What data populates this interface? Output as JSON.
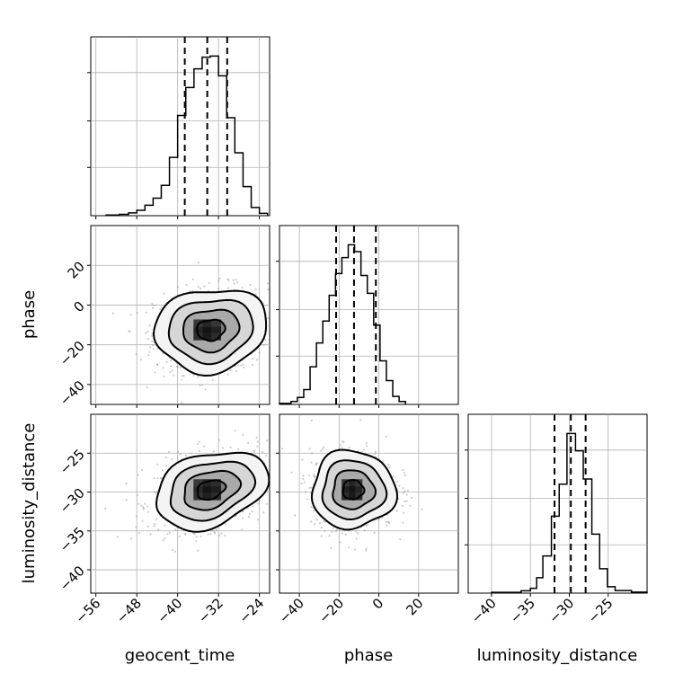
{
  "chart_data": {
    "type": "corner",
    "parameters": [
      {
        "name": "geocent_time",
        "label": "geocent_time",
        "range": [
          -57,
          -22
        ],
        "ticks": [
          -56,
          -48,
          -40,
          -32,
          -24
        ],
        "quantiles": [
          -38.6,
          -34.2,
          -30.3
        ],
        "hist": [
          {
            "x0": -54.0,
            "x1": -51.4,
            "count": 0.3
          },
          {
            "x0": -51.4,
            "x1": -49.6,
            "count": 0.6
          },
          {
            "x0": -49.6,
            "x1": -48.0,
            "count": 1.2
          },
          {
            "x0": -48.0,
            "x1": -46.4,
            "count": 2.3
          },
          {
            "x0": -46.4,
            "x1": -44.8,
            "count": 4.5
          },
          {
            "x0": -44.8,
            "x1": -43.2,
            "count": 7.5
          },
          {
            "x0": -43.2,
            "x1": -41.6,
            "count": 13.0
          },
          {
            "x0": -41.6,
            "x1": -40.0,
            "count": 25.0
          },
          {
            "x0": -40.0,
            "x1": -38.4,
            "count": 43.0
          },
          {
            "x0": -38.4,
            "x1": -36.8,
            "count": 55.0
          },
          {
            "x0": -36.8,
            "x1": -35.2,
            "count": 63.0
          },
          {
            "x0": -35.2,
            "x1": -33.6,
            "count": 68.0
          },
          {
            "x0": -33.6,
            "x1": -32.0,
            "count": 68.5
          },
          {
            "x0": -32.0,
            "x1": -30.4,
            "count": 60.0
          },
          {
            "x0": -30.4,
            "x1": -28.8,
            "count": 42.0
          },
          {
            "x0": -28.8,
            "x1": -27.2,
            "count": 27.0
          },
          {
            "x0": -27.2,
            "x1": -25.6,
            "count": 12.5
          },
          {
            "x0": -25.6,
            "x1": -24.0,
            "count": 3.5
          },
          {
            "x0": -24.0,
            "x1": -22.4,
            "count": 1.0
          }
        ]
      },
      {
        "name": "phase",
        "label": "phase",
        "range": [
          -50,
          40
        ],
        "ticks": [
          -40,
          -20,
          0,
          20
        ],
        "quantiles": [
          -21.5,
          -12.5,
          -1.5
        ],
        "hist": [
          {
            "x0": -50.0,
            "x1": -44.2,
            "count": 0.5
          },
          {
            "x0": -44.2,
            "x1": -41.0,
            "count": 1.5
          },
          {
            "x0": -41.0,
            "x1": -37.8,
            "count": 3.5
          },
          {
            "x0": -37.8,
            "x1": -34.6,
            "count": 7.5
          },
          {
            "x0": -34.6,
            "x1": -31.4,
            "count": 19.0
          },
          {
            "x0": -31.4,
            "x1": -28.2,
            "count": 31.0
          },
          {
            "x0": -28.2,
            "x1": -25.0,
            "count": 42.0
          },
          {
            "x0": -25.0,
            "x1": -21.8,
            "count": 55.0
          },
          {
            "x0": -21.8,
            "x1": -18.6,
            "count": 66.0
          },
          {
            "x0": -18.6,
            "x1": -15.4,
            "count": 74.0
          },
          {
            "x0": -15.4,
            "x1": -12.2,
            "count": 80.5
          },
          {
            "x0": -12.2,
            "x1": -9.0,
            "count": 77.0
          },
          {
            "x0": -9.0,
            "x1": -5.8,
            "count": 65.0
          },
          {
            "x0": -5.8,
            "x1": -2.6,
            "count": 56.0
          },
          {
            "x0": -2.6,
            "x1": 0.6,
            "count": 40.0
          },
          {
            "x0": 0.6,
            "x1": 3.8,
            "count": 22.0
          },
          {
            "x0": 3.8,
            "x1": 7.0,
            "count": 12.0
          },
          {
            "x0": 7.0,
            "x1": 10.2,
            "count": 4.0
          },
          {
            "x0": 10.2,
            "x1": 13.4,
            "count": 1.5
          }
        ]
      },
      {
        "name": "luminosity_distance",
        "label": "luminosity_distance",
        "range": [
          -43,
          -20
        ],
        "ticks": [
          -40,
          -35,
          -30,
          -25
        ],
        "quantiles": [
          -31.9,
          -29.8,
          -27.9
        ],
        "hist": [
          {
            "x0": -40.0,
            "x1": -36.2,
            "count": 0.6
          },
          {
            "x0": -36.2,
            "x1": -35.0,
            "count": 1.8
          },
          {
            "x0": -35.0,
            "x1": -34.2,
            "count": 3.8
          },
          {
            "x0": -34.2,
            "x1": -33.4,
            "count": 12.0
          },
          {
            "x0": -33.4,
            "x1": -32.3,
            "count": 29.0
          },
          {
            "x0": -32.3,
            "x1": -31.3,
            "count": 60.0
          },
          {
            "x0": -31.3,
            "x1": -30.3,
            "count": 85.0
          },
          {
            "x0": -30.3,
            "x1": -29.2,
            "count": 124.5
          },
          {
            "x0": -29.2,
            "x1": -28.2,
            "count": 111.0
          },
          {
            "x0": -28.2,
            "x1": -27.1,
            "count": 89.0
          },
          {
            "x0": -27.1,
            "x1": -26.1,
            "count": 46.0
          },
          {
            "x0": -26.1,
            "x1": -25.1,
            "count": 19.0
          },
          {
            "x0": -25.1,
            "x1": -24.1,
            "count": 5.0
          },
          {
            "x0": -24.1,
            "x1": -22.0,
            "count": 2.0
          },
          {
            "x0": -22.0,
            "x1": -20.0,
            "count": 0.8
          }
        ]
      }
    ],
    "hist_ylim": [
      0,
      75
    ],
    "hist_yticks": [
      0,
      20,
      40,
      60
    ],
    "grid": true,
    "panels_2d": [
      {
        "x_param": "geocent_time",
        "y_param": "phase",
        "center": [
          -33.5,
          -12.5
        ],
        "sigma": [
          5.5,
          10.5
        ],
        "rho": 0.1,
        "contours_sigma": [
          0.5,
          1.0,
          1.5,
          2.0
        ],
        "density_cells": [
          {
            "x": -36.0,
            "y": -16.0,
            "w": 1.8,
            "h": 3.5,
            "level": 0.78
          },
          {
            "x": -34.2,
            "y": -16.0,
            "w": 1.8,
            "h": 3.5,
            "level": 0.95
          },
          {
            "x": -32.4,
            "y": -16.0,
            "w": 1.8,
            "h": 3.5,
            "level": 0.8
          },
          {
            "x": -36.0,
            "y": -12.5,
            "w": 1.8,
            "h": 3.5,
            "level": 0.85
          },
          {
            "x": -34.2,
            "y": -12.5,
            "w": 1.8,
            "h": 3.5,
            "level": 1.0
          },
          {
            "x": -32.4,
            "y": -12.5,
            "w": 1.8,
            "h": 3.5,
            "level": 0.9
          },
          {
            "x": -36.0,
            "y": -9.0,
            "w": 1.8,
            "h": 3.5,
            "level": 0.7
          },
          {
            "x": -34.2,
            "y": -9.0,
            "w": 1.8,
            "h": 3.5,
            "level": 0.85
          },
          {
            "x": -32.4,
            "y": -9.0,
            "w": 1.8,
            "h": 3.5,
            "level": 0.72
          }
        ]
      },
      {
        "x_param": "geocent_time",
        "y_param": "luminosity_distance",
        "center": [
          -33.5,
          -29.7
        ],
        "sigma": [
          5.5,
          2.5
        ],
        "rho": 0.3,
        "contours_sigma": [
          0.5,
          1.0,
          1.5,
          2.0
        ],
        "density_cells": [
          {
            "x": -36.0,
            "y": -30.6,
            "w": 1.8,
            "h": 0.9,
            "level": 0.75
          },
          {
            "x": -34.2,
            "y": -30.6,
            "w": 1.8,
            "h": 0.9,
            "level": 0.9
          },
          {
            "x": -32.4,
            "y": -30.6,
            "w": 1.8,
            "h": 0.9,
            "level": 0.8
          },
          {
            "x": -36.0,
            "y": -29.7,
            "w": 1.8,
            "h": 0.9,
            "level": 0.82
          },
          {
            "x": -34.2,
            "y": -29.7,
            "w": 1.8,
            "h": 0.9,
            "level": 1.0
          },
          {
            "x": -32.4,
            "y": -29.7,
            "w": 1.8,
            "h": 0.9,
            "level": 0.92
          },
          {
            "x": -36.0,
            "y": -28.8,
            "w": 1.8,
            "h": 0.9,
            "level": 0.68
          },
          {
            "x": -34.2,
            "y": -28.8,
            "w": 1.8,
            "h": 0.9,
            "level": 0.86
          },
          {
            "x": -32.4,
            "y": -28.8,
            "w": 1.8,
            "h": 0.9,
            "level": 0.8
          }
        ]
      },
      {
        "x_param": "phase",
        "y_param": "luminosity_distance",
        "center": [
          -13.0,
          -29.7
        ],
        "sigma": [
          10.5,
          2.5
        ],
        "rho": 0.0,
        "contours_sigma": [
          0.5,
          1.0,
          1.5,
          2.0
        ],
        "density_cells": [
          {
            "x": -17.0,
            "y": -30.6,
            "w": 3.5,
            "h": 0.9,
            "level": 0.8
          },
          {
            "x": -13.5,
            "y": -30.6,
            "w": 3.5,
            "h": 0.9,
            "level": 0.95
          },
          {
            "x": -10.0,
            "y": -30.6,
            "w": 3.5,
            "h": 0.9,
            "level": 0.78
          },
          {
            "x": -17.0,
            "y": -29.7,
            "w": 3.5,
            "h": 0.9,
            "level": 0.88
          },
          {
            "x": -13.5,
            "y": -29.7,
            "w": 3.5,
            "h": 0.9,
            "level": 1.0
          },
          {
            "x": -10.0,
            "y": -29.7,
            "w": 3.5,
            "h": 0.9,
            "level": 0.86
          },
          {
            "x": -17.0,
            "y": -28.8,
            "w": 3.5,
            "h": 0.9,
            "level": 0.72
          },
          {
            "x": -13.5,
            "y": -28.8,
            "w": 3.5,
            "h": 0.9,
            "level": 0.85
          },
          {
            "x": -10.0,
            "y": -28.8,
            "w": 3.5,
            "h": 0.9,
            "level": 0.7
          }
        ]
      }
    ]
  }
}
